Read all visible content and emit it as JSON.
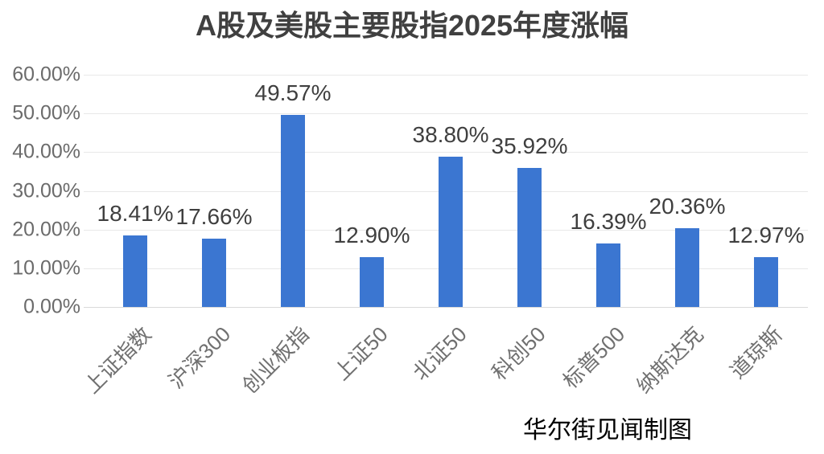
{
  "chart_data": {
    "type": "bar",
    "title": "A股及美股主要股指2025年度涨幅",
    "categories": [
      "上证指数",
      "沪深300",
      "创业板指",
      "上证50",
      "北证50",
      "科创50",
      "标普500",
      "纳斯达克",
      "道琼斯"
    ],
    "values": [
      18.41,
      17.66,
      49.57,
      12.9,
      38.8,
      35.92,
      16.39,
      20.36,
      12.97
    ],
    "data_labels": [
      "18.41%",
      "17.66%",
      "49.57%",
      "12.90%",
      "38.80%",
      "35.92%",
      "16.39%",
      "20.36%",
      "12.97%"
    ],
    "xlabel": "",
    "ylabel": "",
    "ylim": [
      0,
      60
    ],
    "y_ticks": [
      {
        "value": 0,
        "label": "0.00%"
      },
      {
        "value": 10,
        "label": "10.00%"
      },
      {
        "value": 20,
        "label": "20.00%"
      },
      {
        "value": 30,
        "label": "30.00%"
      },
      {
        "value": 40,
        "label": "40.00%"
      },
      {
        "value": 50,
        "label": "50.00%"
      },
      {
        "value": 60,
        "label": "60.00%"
      }
    ],
    "grid": true,
    "legend": "none",
    "colors": {
      "bar": "#3b76d1",
      "gridline": "#e8e8e8",
      "baseline": "#d9d9d9",
      "title": "#404040",
      "data_label": "#3f3f3f",
      "y_tick": "#6b6b6b",
      "category": "#707070",
      "credit": "#000000",
      "background": "#ffffff"
    }
  },
  "footer": {
    "credit": "华尔街见闻制图"
  }
}
